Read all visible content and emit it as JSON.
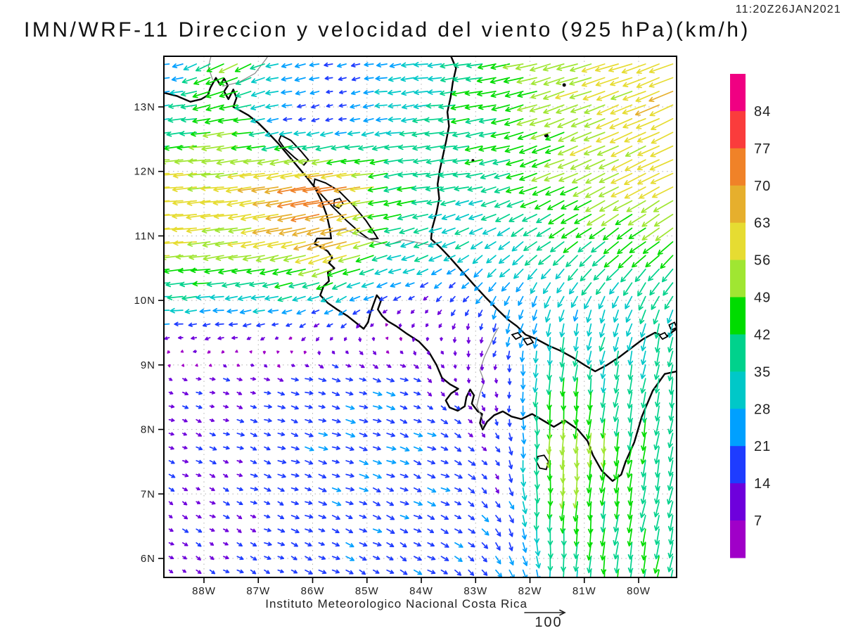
{
  "header": {
    "title": "IMN/WRF-11 Direccion y velocidad del viento (925 hPa)(km/h)",
    "timestamp": "11:20Z26JAN2021"
  },
  "footer": {
    "credit": "Instituto Meteorologico Nacional Costa Rica",
    "reference_label": "100"
  },
  "axes": {
    "x_tick_labels": [
      "88W",
      "87W",
      "86W",
      "85W",
      "84W",
      "83W",
      "82W",
      "81W",
      "80W"
    ],
    "x_tick_lons": [
      -88,
      -87,
      -86,
      -85,
      -84,
      -83,
      -82,
      -81,
      -80
    ],
    "y_tick_labels": [
      "13N",
      "12N",
      "11N",
      "10N",
      "9N",
      "8N",
      "7N",
      "6N"
    ],
    "y_tick_lats": [
      13,
      12,
      11,
      10,
      9,
      8,
      7,
      6
    ]
  },
  "colorbar": {
    "unit": "km/h",
    "tick_labels": [
      "84",
      "77",
      "70",
      "63",
      "56",
      "49",
      "42",
      "35",
      "28",
      "21",
      "14",
      "7"
    ],
    "colors_top_to_bottom": [
      "#F00082",
      "#FA3C3C",
      "#F08228",
      "#E6AF2D",
      "#E6DC32",
      "#A0E632",
      "#00DC00",
      "#00D28C",
      "#00C8C8",
      "#00A0FF",
      "#1E3CFF",
      "#6E00DC",
      "#A000C8"
    ]
  },
  "chart_data": {
    "type": "quiver",
    "title": "IMN/WRF-11 Direccion y velocidad del viento (925 hPa)(km/h)",
    "valid_time": "11:20Z26JAN2021",
    "units": "km/h",
    "level_hpa": 925,
    "lon_range": [
      -88.74,
      -79.3
    ],
    "lat_range": [
      5.75,
      13.8
    ],
    "grid_on": true,
    "speed_bin_edges": [
      7,
      14,
      21,
      28,
      35,
      42,
      49,
      56,
      63,
      70,
      77,
      84
    ],
    "reference_arrow": {
      "speed": 100
    },
    "grid": {
      "lons": [
        -88.74,
        -87.5,
        -86.5,
        -85.5,
        -84.5,
        -83.5,
        -82.5,
        -81.5,
        -80.5,
        -79.3
      ],
      "lats": [
        13.8,
        12.8,
        11.8,
        10.8,
        9.8,
        8.8,
        7.8,
        6.8,
        5.75
      ],
      "u": [
        [
          -20,
          -42,
          -30,
          -18,
          -27,
          -33,
          -45,
          -52,
          -55,
          -60
        ],
        [
          -30,
          -50,
          -22,
          -15,
          -30,
          -40,
          -44,
          -48,
          -52,
          -56
        ],
        [
          -63,
          -56,
          -68,
          -74,
          -45,
          -36,
          -38,
          -44,
          -48,
          -52
        ],
        [
          -58,
          -54,
          -58,
          -64,
          -38,
          -30,
          -26,
          -30,
          -34,
          -36
        ],
        [
          -28,
          -25,
          -22,
          -16,
          -8,
          -5,
          -8,
          -6,
          -10,
          -10
        ],
        [
          10,
          12,
          15,
          18,
          18,
          5,
          0,
          -3,
          -6,
          -6
        ],
        [
          12,
          14,
          18,
          20,
          20,
          18,
          5,
          -3,
          -6,
          -7
        ],
        [
          10,
          12,
          16,
          18,
          18,
          18,
          10,
          -3,
          -6,
          -9
        ],
        [
          10,
          12,
          15,
          16,
          16,
          16,
          12,
          0,
          -5,
          -8
        ]
      ],
      "v": [
        [
          -2,
          -25,
          -6,
          -4,
          -4,
          -4,
          -8,
          -14,
          -16,
          -22
        ],
        [
          -3,
          -8,
          -4,
          -4,
          -4,
          -5,
          -10,
          -18,
          -22,
          -25
        ],
        [
          -4,
          -6,
          -12,
          -10,
          -8,
          -4,
          -10,
          -18,
          -24,
          -27
        ],
        [
          -4,
          -8,
          -12,
          -20,
          -10,
          -14,
          -20,
          -24,
          -28,
          -30
        ],
        [
          -2,
          -3,
          -5,
          -10,
          -6,
          -10,
          -22,
          -28,
          -30,
          -34
        ],
        [
          -3,
          -3,
          -4,
          -5,
          -6,
          -8,
          -12,
          -45,
          -35,
          -38
        ],
        [
          -5,
          -5,
          -6,
          -6,
          -7,
          -8,
          -12,
          -56,
          -48,
          -36
        ],
        [
          -6,
          -6,
          -6,
          -7,
          -8,
          -8,
          -16,
          -48,
          -42,
          -38
        ],
        [
          -7,
          -7,
          -7,
          -8,
          -9,
          -10,
          -18,
          -32,
          -42,
          -40
        ]
      ]
    }
  },
  "map_geometry": {
    "coastlines": [
      [
        [
          -88.74,
          13.22
        ],
        [
          -88.5,
          13.17
        ],
        [
          -88.25,
          13.08
        ],
        [
          -88.05,
          13.12
        ],
        [
          -87.93,
          13.18
        ],
        [
          -87.88,
          13.3
        ],
        [
          -87.78,
          13.45
        ],
        [
          -87.7,
          13.34
        ],
        [
          -87.63,
          13.44
        ],
        [
          -87.56,
          13.33
        ],
        [
          -87.63,
          13.24
        ],
        [
          -87.55,
          13.12
        ],
        [
          -87.46,
          13.27
        ],
        [
          -87.4,
          13.14
        ],
        [
          -87.46,
          13.0
        ],
        [
          -87.35,
          12.95
        ],
        [
          -87.18,
          12.87
        ],
        [
          -87.0,
          12.75
        ],
        [
          -86.82,
          12.6
        ],
        [
          -86.64,
          12.44
        ],
        [
          -86.46,
          12.26
        ],
        [
          -86.28,
          12.08
        ],
        [
          -86.1,
          11.9
        ],
        [
          -85.96,
          11.75
        ],
        [
          -85.84,
          11.55
        ],
        [
          -85.74,
          11.32
        ],
        [
          -85.68,
          11.1
        ],
        [
          -85.66,
          10.96
        ],
        [
          -85.78,
          10.96
        ],
        [
          -85.92,
          10.96
        ],
        [
          -85.97,
          10.88
        ],
        [
          -85.83,
          10.82
        ],
        [
          -85.72,
          10.76
        ],
        [
          -85.64,
          10.66
        ],
        [
          -85.7,
          10.58
        ],
        [
          -85.6,
          10.5
        ],
        [
          -85.72,
          10.44
        ],
        [
          -85.7,
          10.3
        ],
        [
          -85.8,
          10.22
        ],
        [
          -85.86,
          10.08
        ],
        [
          -85.72,
          9.96
        ],
        [
          -85.55,
          9.86
        ],
        [
          -85.36,
          9.76
        ],
        [
          -85.18,
          9.64
        ],
        [
          -85.06,
          9.56
        ],
        [
          -84.98,
          9.66
        ],
        [
          -84.94,
          9.8
        ],
        [
          -84.88,
          9.94
        ],
        [
          -84.82,
          10.08
        ],
        [
          -84.74,
          10.0
        ],
        [
          -84.8,
          9.86
        ],
        [
          -84.72,
          9.76
        ],
        [
          -84.62,
          9.68
        ],
        [
          -84.46,
          9.6
        ],
        [
          -84.26,
          9.48
        ],
        [
          -84.04,
          9.36
        ],
        [
          -83.86,
          9.2
        ],
        [
          -83.72,
          9.0
        ],
        [
          -83.62,
          8.8
        ],
        [
          -83.47,
          8.7
        ],
        [
          -83.32,
          8.63
        ],
        [
          -83.45,
          8.56
        ],
        [
          -83.55,
          8.45
        ],
        [
          -83.48,
          8.34
        ],
        [
          -83.33,
          8.29
        ],
        [
          -83.2,
          8.36
        ],
        [
          -83.17,
          8.5
        ],
        [
          -83.1,
          8.62
        ],
        [
          -83.03,
          8.53
        ],
        [
          -83.07,
          8.4
        ],
        [
          -82.96,
          8.28
        ],
        [
          -82.88,
          8.24
        ],
        [
          -82.92,
          8.1
        ],
        [
          -82.87,
          8.0
        ],
        [
          -82.79,
          8.12
        ],
        [
          -82.66,
          8.22
        ],
        [
          -82.5,
          8.28
        ],
        [
          -82.34,
          8.2
        ],
        [
          -82.16,
          8.16
        ],
        [
          -81.96,
          8.24
        ],
        [
          -81.76,
          8.14
        ],
        [
          -81.56,
          8.04
        ],
        [
          -81.36,
          8.14
        ],
        [
          -81.12,
          8.0
        ],
        [
          -80.94,
          7.82
        ],
        [
          -80.84,
          7.6
        ],
        [
          -80.68,
          7.36
        ],
        [
          -80.48,
          7.2
        ],
        [
          -80.32,
          7.3
        ],
        [
          -80.24,
          7.5
        ],
        [
          -80.08,
          7.8
        ],
        [
          -79.94,
          8.2
        ],
        [
          -79.74,
          8.6
        ],
        [
          -79.52,
          8.86
        ],
        [
          -79.3,
          8.9
        ]
      ],
      [
        [
          -83.47,
          13.82
        ],
        [
          -83.36,
          13.6
        ],
        [
          -83.42,
          13.38
        ],
        [
          -83.46,
          13.15
        ],
        [
          -83.52,
          12.92
        ],
        [
          -83.49,
          12.7
        ],
        [
          -83.54,
          12.48
        ],
        [
          -83.6,
          12.25
        ],
        [
          -83.66,
          12.02
        ],
        [
          -83.7,
          11.8
        ],
        [
          -83.67,
          11.58
        ],
        [
          -83.72,
          11.36
        ],
        [
          -83.8,
          11.12
        ],
        [
          -83.82,
          10.95
        ],
        [
          -83.66,
          10.83
        ],
        [
          -83.48,
          10.67
        ],
        [
          -83.26,
          10.46
        ],
        [
          -83.04,
          10.25
        ],
        [
          -82.82,
          10.05
        ],
        [
          -82.6,
          9.86
        ],
        [
          -82.4,
          9.7
        ],
        [
          -82.24,
          9.6
        ],
        [
          -82.08,
          9.47
        ],
        [
          -81.88,
          9.4
        ],
        [
          -81.66,
          9.3
        ],
        [
          -81.44,
          9.22
        ],
        [
          -81.22,
          9.12
        ],
        [
          -81.0,
          9.0
        ],
        [
          -80.8,
          8.9
        ],
        [
          -80.58,
          9.0
        ],
        [
          -80.36,
          9.12
        ],
        [
          -80.14,
          9.26
        ],
        [
          -79.92,
          9.4
        ],
        [
          -79.7,
          9.5
        ],
        [
          -79.5,
          9.43
        ],
        [
          -79.37,
          9.52
        ],
        [
          -79.3,
          9.56
        ]
      ]
    ],
    "lakes": [
      [
        [
          -85.96,
          11.88
        ],
        [
          -85.76,
          11.82
        ],
        [
          -85.52,
          11.7
        ],
        [
          -85.26,
          11.48
        ],
        [
          -85.02,
          11.24
        ],
        [
          -84.86,
          11.04
        ],
        [
          -84.8,
          10.96
        ],
        [
          -84.96,
          10.95
        ],
        [
          -85.14,
          11.06
        ],
        [
          -85.38,
          11.24
        ],
        [
          -85.62,
          11.44
        ],
        [
          -85.84,
          11.64
        ],
        [
          -85.98,
          11.78
        ]
      ],
      [
        [
          -86.58,
          12.56
        ],
        [
          -86.4,
          12.48
        ],
        [
          -86.22,
          12.32
        ],
        [
          -86.08,
          12.18
        ],
        [
          -86.16,
          12.1
        ],
        [
          -86.34,
          12.22
        ],
        [
          -86.52,
          12.36
        ],
        [
          -86.62,
          12.48
        ]
      ]
    ],
    "borders": [
      [
        [
          -87.66,
          13.32
        ],
        [
          -87.36,
          13.38
        ],
        [
          -87.06,
          13.52
        ],
        [
          -86.86,
          13.74
        ],
        [
          -86.8,
          13.82
        ]
      ],
      [
        [
          -87.84,
          13.42
        ],
        [
          -87.92,
          13.62
        ],
        [
          -87.86,
          13.82
        ]
      ],
      [
        [
          -85.66,
          11.06
        ],
        [
          -85.4,
          11.1
        ],
        [
          -85.12,
          11.0
        ],
        [
          -84.86,
          10.92
        ],
        [
          -84.6,
          10.86
        ],
        [
          -84.34,
          10.94
        ],
        [
          -84.08,
          10.9
        ],
        [
          -83.84,
          10.86
        ],
        [
          -83.7,
          10.9
        ]
      ],
      [
        [
          -82.58,
          9.58
        ],
        [
          -82.66,
          9.46
        ],
        [
          -82.74,
          9.3
        ],
        [
          -82.84,
          9.12
        ],
        [
          -82.92,
          8.92
        ],
        [
          -82.84,
          8.74
        ],
        [
          -82.92,
          8.56
        ],
        [
          -82.98,
          8.36
        ],
        [
          -82.88,
          8.18
        ],
        [
          -82.87,
          8.02
        ]
      ]
    ],
    "islands_outline": [
      [
        [
          -85.6,
          11.56
        ],
        [
          -85.5,
          11.58
        ],
        [
          -85.44,
          11.5
        ],
        [
          -85.52,
          11.43
        ],
        [
          -85.61,
          11.47
        ]
      ],
      [
        [
          -82.33,
          9.47
        ],
        [
          -82.22,
          9.5
        ],
        [
          -82.16,
          9.44
        ],
        [
          -82.26,
          9.4
        ]
      ],
      [
        [
          -82.12,
          9.4
        ],
        [
          -82.0,
          9.42
        ],
        [
          -81.94,
          9.35
        ],
        [
          -82.05,
          9.31
        ]
      ],
      [
        [
          -81.86,
          7.58
        ],
        [
          -81.74,
          7.6
        ],
        [
          -81.66,
          7.5
        ],
        [
          -81.7,
          7.38
        ],
        [
          -81.82,
          7.4
        ],
        [
          -81.88,
          7.5
        ]
      ],
      [
        [
          -79.62,
          9.46
        ],
        [
          -79.52,
          9.5
        ],
        [
          -79.47,
          9.44
        ],
        [
          -79.56,
          9.4
        ]
      ],
      [
        [
          -79.44,
          9.62
        ],
        [
          -79.34,
          9.66
        ],
        [
          -79.3,
          9.58
        ],
        [
          -79.4,
          9.54
        ]
      ]
    ],
    "island_dots": [
      [
        -81.37,
        13.34,
        2.5
      ],
      [
        -81.7,
        12.56,
        3
      ],
      [
        -83.05,
        12.17,
        2
      ]
    ]
  }
}
